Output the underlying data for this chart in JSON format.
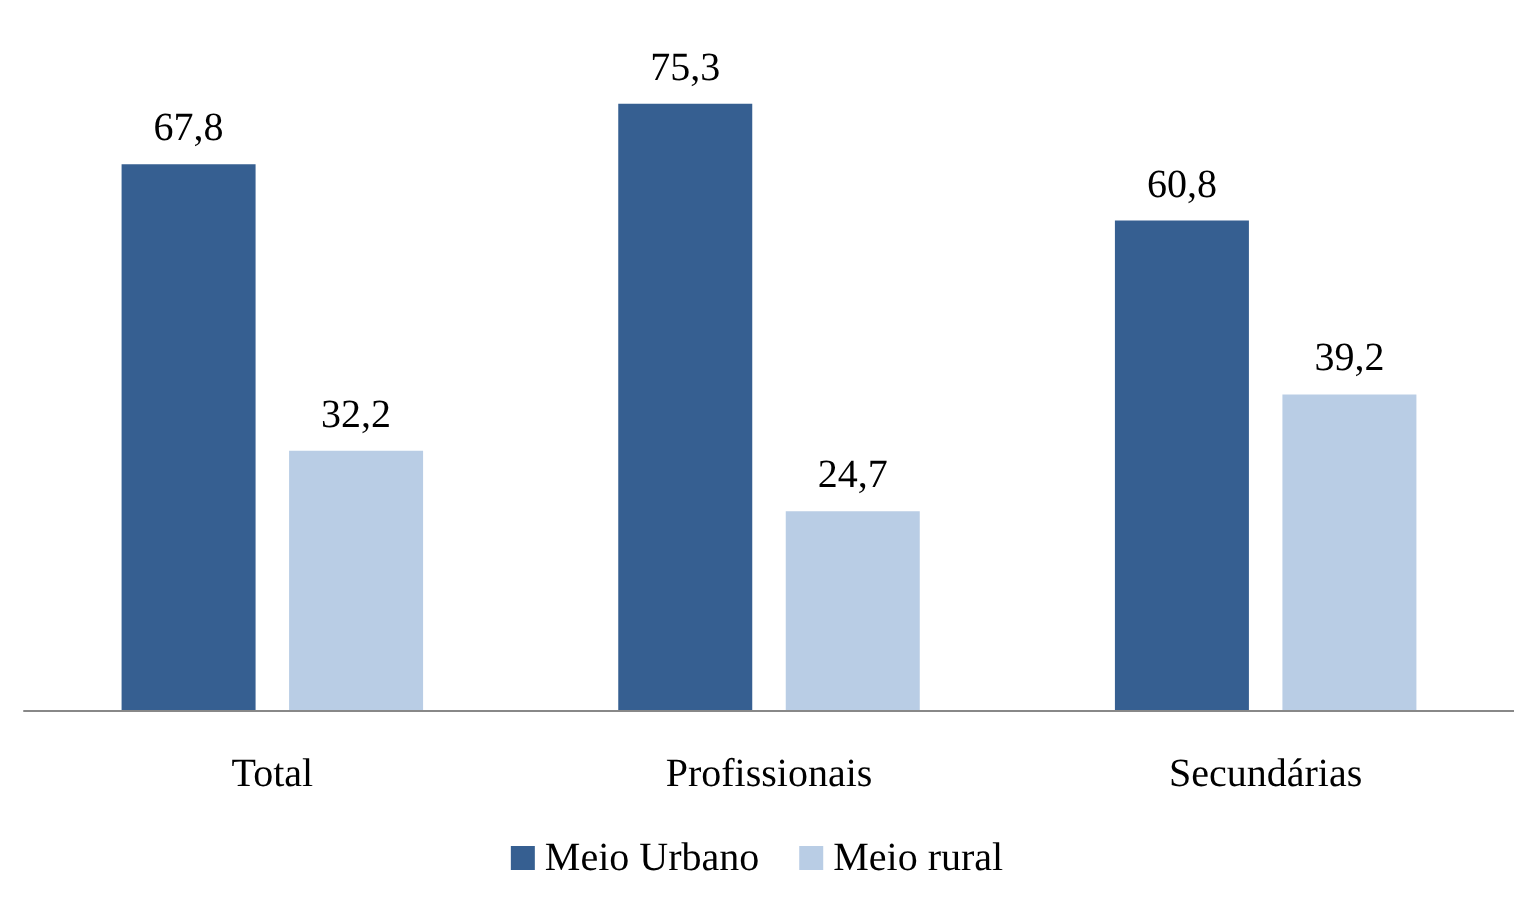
{
  "chart_data": {
    "type": "bar",
    "categories": [
      "Total",
      "Profissionais",
      "Secundárias"
    ],
    "series": [
      {
        "name": "Meio Urbano",
        "color": "#365f91",
        "values": [
          67.8,
          75.3,
          60.8
        ],
        "value_labels": [
          "67,8",
          "75,3",
          "60,8"
        ]
      },
      {
        "name": "Meio rural",
        "color": "#b9cde5",
        "values": [
          32.2,
          24.7,
          39.2
        ],
        "value_labels": [
          "32,2",
          "24,7",
          "39,2"
        ]
      }
    ],
    "legend": "bottom",
    "grid": false
  }
}
